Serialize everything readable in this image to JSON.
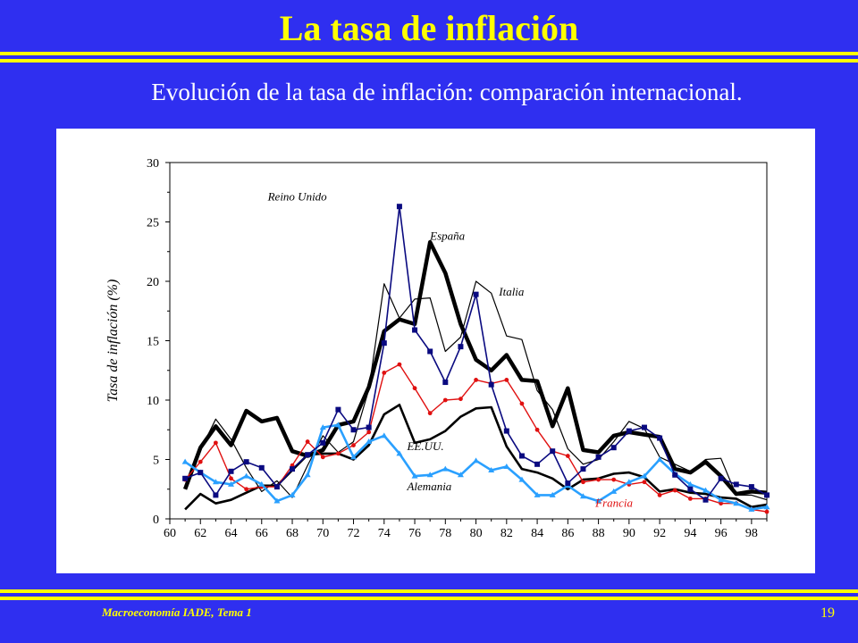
{
  "slide": {
    "title": "La tasa de inflación",
    "subtitle": "Evolución de la tasa de inflación: comparación internacional.",
    "footer": "Macroeconomía IADE, Tema 1",
    "page_number": "19",
    "colors": {
      "background": "#2f2ff0",
      "accent": "#ffff00",
      "text": "#ffffff"
    }
  },
  "chart_data": {
    "type": "line",
    "title": "",
    "xlabel": "",
    "ylabel": "Tasa de inflación (%)",
    "xlim": [
      60,
      99
    ],
    "ylim": [
      0,
      30
    ],
    "x_ticks": [
      "60",
      "62",
      "64",
      "66",
      "68",
      "70",
      "72",
      "74",
      "76",
      "78",
      "80",
      "82",
      "84",
      "86",
      "88",
      "90",
      "92",
      "94",
      "96",
      "98"
    ],
    "y_ticks": [
      "0",
      "5",
      "10",
      "15",
      "20",
      "25",
      "30"
    ],
    "grid": false,
    "series": [
      {
        "name": "Reino Unido",
        "color": "#0a0a80",
        "marker": "square",
        "x": [
          61,
          62,
          63,
          64,
          65,
          66,
          67,
          68,
          69,
          70,
          71,
          72,
          73,
          74,
          75,
          76,
          77,
          78,
          79,
          80,
          81,
          82,
          83,
          84,
          85,
          86,
          87,
          88,
          89,
          90,
          91,
          92,
          93,
          94,
          95,
          96,
          97,
          98,
          99
        ],
        "y": [
          3.4,
          3.9,
          2.0,
          4.0,
          4.8,
          4.3,
          2.7,
          4.2,
          5.4,
          6.4,
          9.2,
          7.5,
          7.7,
          14.8,
          26.3,
          15.9,
          14.1,
          11.5,
          14.5,
          18.9,
          11.3,
          7.4,
          5.3,
          4.6,
          5.7,
          3.0,
          4.2,
          5.2,
          6.0,
          7.4,
          7.7,
          6.8,
          3.7,
          2.5,
          1.6,
          3.4,
          2.9,
          2.7,
          2.0
        ]
      },
      {
        "name": "España",
        "color": "#000000",
        "marker": "none",
        "x": [
          61,
          62,
          63,
          64,
          65,
          66,
          67,
          68,
          69,
          70,
          71,
          72,
          73,
          74,
          75,
          76,
          77,
          78,
          79,
          80,
          81,
          82,
          83,
          84,
          85,
          86,
          87,
          88,
          89,
          90,
          91,
          92,
          93,
          94,
          95,
          96,
          97,
          98,
          99
        ],
        "y": [
          2.5,
          6.0,
          7.8,
          6.2,
          9.1,
          8.2,
          8.5,
          5.7,
          5.3,
          5.8,
          7.9,
          8.2,
          11.1,
          15.8,
          16.8,
          16.4,
          23.3,
          20.7,
          16.4,
          13.4,
          12.5,
          13.8,
          11.7,
          11.6,
          7.8,
          11.0,
          5.8,
          5.6,
          7.0,
          7.3,
          7.1,
          6.9,
          4.2,
          3.9,
          4.8,
          3.6,
          2.1,
          2.3,
          2.2
        ]
      },
      {
        "name": "Italia",
        "color": "#000000",
        "marker": "none",
        "x": [
          61,
          62,
          63,
          64,
          65,
          66,
          67,
          68,
          69,
          70,
          71,
          72,
          73,
          74,
          75,
          76,
          77,
          78,
          79,
          80,
          81,
          82,
          83,
          84,
          85,
          86,
          87,
          88,
          89,
          90,
          91,
          92,
          93,
          94,
          95,
          96,
          97,
          98,
          99
        ],
        "y": [
          2.6,
          5.8,
          8.4,
          6.7,
          4.3,
          2.3,
          3.2,
          1.8,
          4.5,
          7.0,
          5.6,
          6.5,
          10.9,
          19.8,
          16.9,
          18.5,
          18.6,
          14.1,
          15.3,
          20.0,
          19.0,
          15.4,
          15.1,
          10.8,
          9.2,
          5.9,
          4.6,
          5.0,
          6.5,
          8.2,
          7.6,
          5.2,
          4.6,
          4.0,
          5.0,
          5.1,
          2.0,
          2.0,
          1.6
        ]
      },
      {
        "name": "Francia",
        "color": "#e01010",
        "marker": "circle",
        "x": [
          61,
          62,
          63,
          64,
          65,
          66,
          67,
          68,
          69,
          70,
          71,
          72,
          73,
          74,
          75,
          76,
          77,
          78,
          79,
          80,
          81,
          82,
          83,
          84,
          85,
          86,
          87,
          88,
          89,
          90,
          91,
          92,
          93,
          94,
          95,
          96,
          97,
          98,
          99
        ],
        "y": [
          3.3,
          4.8,
          6.4,
          3.4,
          2.5,
          2.7,
          2.7,
          4.5,
          6.5,
          5.2,
          5.5,
          6.2,
          7.3,
          12.3,
          13.0,
          11.0,
          8.9,
          10.0,
          10.1,
          11.7,
          11.4,
          11.7,
          9.7,
          7.5,
          5.7,
          5.3,
          3.1,
          3.3,
          3.3,
          2.9,
          3.1,
          2.0,
          2.4,
          1.7,
          1.7,
          1.3,
          1.3,
          0.8,
          0.6
        ]
      },
      {
        "name": "EE.UU.",
        "color": "#000000",
        "marker": "none",
        "x": [
          61,
          62,
          63,
          64,
          65,
          66,
          67,
          68,
          69,
          70,
          71,
          72,
          73,
          74,
          75,
          76,
          77,
          78,
          79,
          80,
          81,
          82,
          83,
          84,
          85,
          86,
          87,
          88,
          89,
          90,
          91,
          92,
          93,
          94,
          95,
          96,
          97,
          98,
          99
        ],
        "y": [
          0.8,
          2.1,
          1.3,
          1.6,
          2.2,
          2.8,
          2.8,
          4.1,
          5.4,
          5.5,
          5.5,
          5.0,
          6.2,
          8.8,
          9.6,
          6.4,
          6.7,
          7.4,
          8.6,
          9.3,
          9.4,
          6.1,
          4.2,
          3.9,
          3.4,
          2.5,
          3.3,
          3.4,
          3.8,
          3.9,
          3.5,
          2.3,
          2.5,
          2.2,
          2.1,
          1.8,
          1.7,
          1.0,
          1.2
        ]
      },
      {
        "name": "Alemania",
        "color": "#2aa0ff",
        "marker": "triangle",
        "x": [
          61,
          62,
          63,
          64,
          65,
          66,
          67,
          68,
          69,
          70,
          71,
          72,
          73,
          74,
          75,
          76,
          77,
          78,
          79,
          80,
          81,
          82,
          83,
          84,
          85,
          86,
          87,
          88,
          89,
          90,
          91,
          92,
          93,
          94,
          95,
          96,
          97,
          98,
          99
        ],
        "y": [
          4.8,
          3.9,
          3.1,
          2.9,
          3.6,
          2.9,
          1.5,
          2.0,
          3.7,
          7.7,
          7.9,
          5.2,
          6.5,
          7.0,
          5.5,
          3.6,
          3.7,
          4.2,
          3.7,
          4.9,
          4.1,
          4.4,
          3.3,
          2.0,
          2.0,
          2.8,
          1.9,
          1.5,
          2.3,
          3.1,
          3.6,
          5.0,
          3.8,
          2.9,
          2.4,
          1.6,
          1.3,
          0.8,
          1.0
        ]
      }
    ],
    "labels": [
      {
        "text": "Reino Unido",
        "x": 66.4,
        "y": 26.8,
        "color": "#000000"
      },
      {
        "text": "España",
        "x": 77.0,
        "y": 23.5,
        "color": "#000000"
      },
      {
        "text": "Italia",
        "x": 81.5,
        "y": 18.8,
        "color": "#000000"
      },
      {
        "text": "EE.UU.",
        "x": 75.5,
        "y": 5.8,
        "color": "#000000"
      },
      {
        "text": "Alemania",
        "x": 75.5,
        "y": 2.4,
        "color": "#000000"
      },
      {
        "text": "Francia",
        "x": 87.8,
        "y": 1.0,
        "color": "#e01010"
      }
    ]
  }
}
